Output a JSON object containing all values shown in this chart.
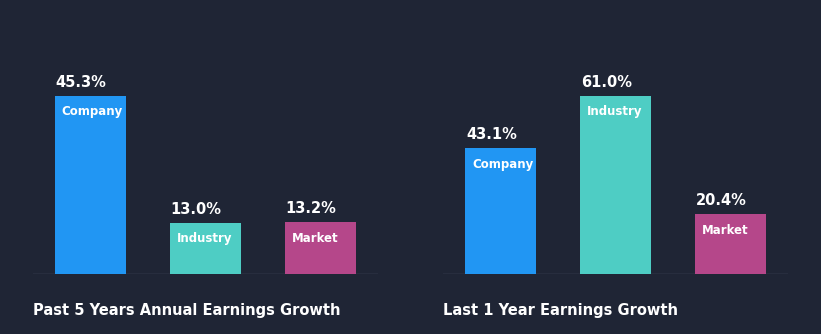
{
  "background_color": "#1f2535",
  "chart1": {
    "title": "Past 5 Years Annual Earnings Growth",
    "bars": [
      {
        "label": "Company",
        "value": 45.3,
        "color": "#2196f3"
      },
      {
        "label": "Industry",
        "value": 13.0,
        "color": "#4ecdc4"
      },
      {
        "label": "Market",
        "value": 13.2,
        "color": "#b5478a"
      }
    ]
  },
  "chart2": {
    "title": "Last 1 Year Earnings Growth",
    "bars": [
      {
        "label": "Company",
        "value": 43.1,
        "color": "#2196f3"
      },
      {
        "label": "Industry",
        "value": 61.0,
        "color": "#4ecdc4"
      },
      {
        "label": "Market",
        "value": 20.4,
        "color": "#b5478a"
      }
    ]
  },
  "text_color": "#ffffff",
  "label_fontsize": 8.5,
  "value_fontsize": 10.5,
  "title_fontsize": 10.5
}
